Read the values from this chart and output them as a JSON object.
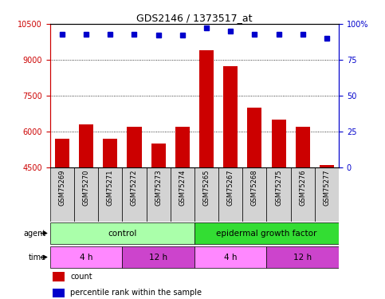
{
  "title": "GDS2146 / 1373517_at",
  "samples": [
    "GSM75269",
    "GSM75270",
    "GSM75271",
    "GSM75272",
    "GSM75273",
    "GSM75274",
    "GSM75265",
    "GSM75267",
    "GSM75268",
    "GSM75275",
    "GSM75276",
    "GSM75277"
  ],
  "counts": [
    5700,
    6300,
    5700,
    6200,
    5500,
    6200,
    9400,
    8750,
    7000,
    6500,
    6200,
    4600
  ],
  "percentiles": [
    93,
    93,
    93,
    93,
    92,
    92,
    97,
    95,
    93,
    93,
    93,
    90
  ],
  "ylim_left": [
    4500,
    10500
  ],
  "ylim_right": [
    0,
    100
  ],
  "yticks_left": [
    4500,
    6000,
    7500,
    9000,
    10500
  ],
  "yticks_right": [
    0,
    25,
    50,
    75,
    100
  ],
  "bar_color": "#cc0000",
  "dot_color": "#0000cc",
  "agent_groups": [
    {
      "label": "control",
      "start": 0,
      "end": 6,
      "color": "#aaffaa"
    },
    {
      "label": "epidermal growth factor",
      "start": 6,
      "end": 12,
      "color": "#33dd33"
    }
  ],
  "time_groups": [
    {
      "label": "4 h",
      "start": 0,
      "end": 3,
      "color": "#ff88ff"
    },
    {
      "label": "12 h",
      "start": 3,
      "end": 6,
      "color": "#cc44cc"
    },
    {
      "label": "4 h",
      "start": 6,
      "end": 9,
      "color": "#ff88ff"
    },
    {
      "label": "12 h",
      "start": 9,
      "end": 12,
      "color": "#cc44cc"
    }
  ],
  "legend_items": [
    {
      "label": "count",
      "color": "#cc0000"
    },
    {
      "label": "percentile rank within the sample",
      "color": "#0000cc"
    }
  ],
  "left_axis_color": "#cc0000",
  "right_axis_color": "#0000cc"
}
